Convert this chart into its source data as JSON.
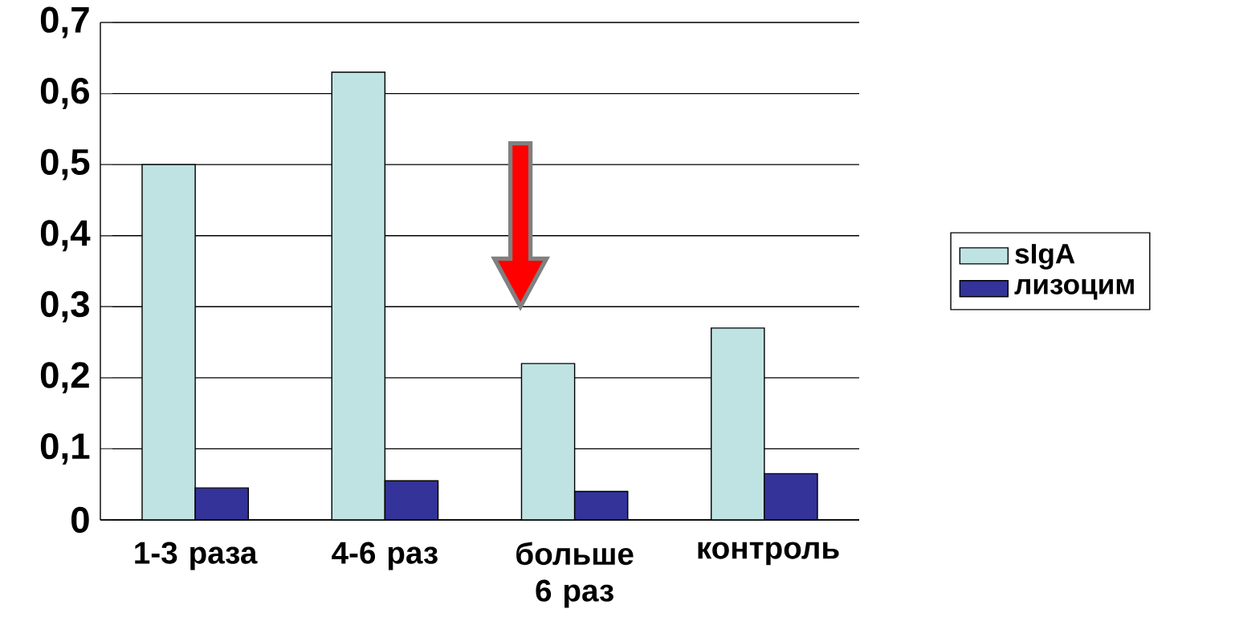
{
  "chart_data": {
    "type": "bar",
    "categories": [
      "1-3 раза",
      "4-6 раз",
      "больше 6 раз",
      "контроль"
    ],
    "series": [
      {
        "name": "sIgA",
        "color": "#bfe3e3",
        "values": [
          0.5,
          0.63,
          0.22,
          0.27
        ]
      },
      {
        "name": "лизоцим",
        "color": "#333399",
        "values": [
          0.045,
          0.055,
          0.04,
          0.065
        ]
      }
    ],
    "ylim": [
      0,
      0.7
    ],
    "yticks": [
      0,
      {
        "value": 0.1,
        "label": "0,1"
      },
      {
        "value": 0.2,
        "label": "0,2"
      },
      {
        "value": 0.3,
        "label": "0,3"
      },
      {
        "value": 0.4,
        "label": "0,4"
      },
      {
        "value": 0.5,
        "label": "0,5"
      },
      {
        "value": 0.6,
        "label": "0,6"
      },
      {
        "value": 0.7,
        "label": "0,7"
      }
    ],
    "grid": "y",
    "legend": "right"
  }
}
